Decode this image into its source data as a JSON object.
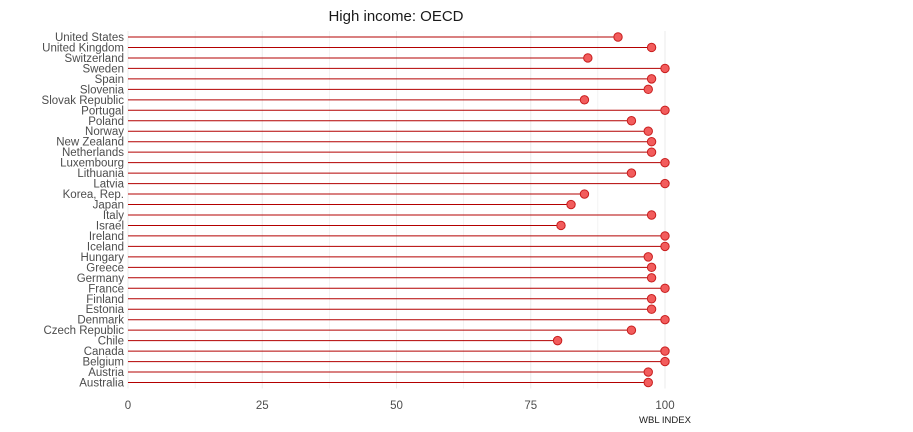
{
  "chart_data": {
    "type": "lollipop",
    "title": "High income: OECD",
    "xlabel": "WBL INDEX",
    "ylabel": "",
    "xlim": [
      0,
      100
    ],
    "xticks": [
      0,
      25,
      50,
      75,
      100
    ],
    "grid": "vertical",
    "colors": {
      "stem": "#b30000",
      "point_fill": "#f25c5c",
      "point_stroke": "#c81e1e",
      "grid": "#ebebeb"
    },
    "categories": [
      "United States",
      "United Kingdom",
      "Switzerland",
      "Sweden",
      "Spain",
      "Slovenia",
      "Slovak Republic",
      "Portugal",
      "Poland",
      "Norway",
      "New Zealand",
      "Netherlands",
      "Luxembourg",
      "Lithuania",
      "Latvia",
      "Korea, Rep.",
      "Japan",
      "Italy",
      "Israel",
      "Ireland",
      "Iceland",
      "Hungary",
      "Greece",
      "Germany",
      "France",
      "Finland",
      "Estonia",
      "Denmark",
      "Czech Republic",
      "Chile",
      "Canada",
      "Belgium",
      "Austria",
      "Australia"
    ],
    "values": [
      91.25,
      97.5,
      85.63,
      100,
      97.5,
      96.88,
      85.0,
      100,
      93.75,
      96.88,
      97.5,
      97.5,
      100,
      93.75,
      100,
      85.0,
      82.5,
      97.5,
      80.63,
      100,
      100,
      96.88,
      97.5,
      97.5,
      100,
      97.5,
      97.5,
      100,
      93.75,
      80.0,
      100,
      100,
      96.88,
      96.88
    ]
  }
}
